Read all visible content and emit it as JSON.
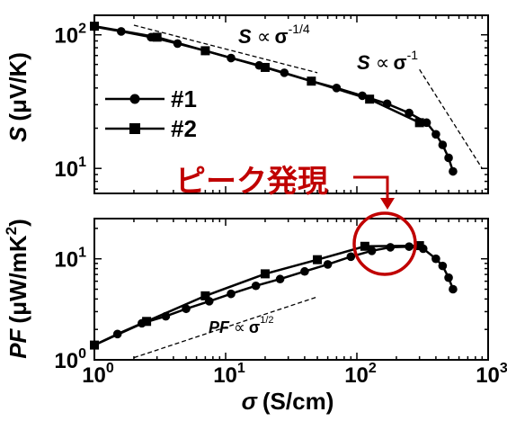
{
  "chart_data": [
    {
      "type": "line",
      "panel": "top",
      "ylabel": "S (μV/K)",
      "xscale": "log",
      "yscale": "log",
      "xlim": [
        1,
        1000
      ],
      "ylim": [
        6.5,
        140
      ],
      "legend_placement": "left",
      "series": [
        {
          "name": "#1",
          "marker": "circle",
          "x": [
            1,
            1.6,
            2.7,
            4.3,
            7,
            11,
            18,
            28,
            45,
            70,
            110,
            170,
            250,
            340,
            400,
            450,
            500,
            540
          ],
          "y": [
            115,
            106,
            96,
            86,
            76,
            67,
            59,
            52,
            45,
            40,
            35,
            30.5,
            26,
            22,
            18,
            15,
            12,
            9.5
          ]
        },
        {
          "name": "#2",
          "marker": "square",
          "x": [
            1,
            3,
            7,
            20,
            45,
            125,
            300
          ],
          "y": [
            116,
            96,
            76,
            57,
            45,
            33,
            22
          ]
        }
      ],
      "guides": [
        {
          "label_var": "S",
          "label_power": "-1/4",
          "x": [
            2,
            50
          ],
          "y": [
            118,
            52
          ]
        },
        {
          "label_var": "S",
          "label_power": "-1",
          "x": [
            300,
            900
          ],
          "y": [
            55,
            10
          ]
        }
      ]
    },
    {
      "type": "line",
      "panel": "bottom",
      "ylabel": "PF (μW/mK²)",
      "xlabel": "σ (S/cm)",
      "xscale": "log",
      "yscale": "log",
      "xlim": [
        1,
        1000
      ],
      "ylim": [
        1,
        25
      ],
      "xticks": [
        "10^0",
        "10^1",
        "10^2",
        "10^3"
      ],
      "series": [
        {
          "name": "#1",
          "marker": "circle",
          "x": [
            1,
            1.5,
            2.3,
            3.5,
            5,
            7.5,
            11,
            17,
            26,
            40,
            60,
            90,
            130,
            180,
            250,
            320,
            400,
            450,
            500,
            540
          ],
          "y": [
            1.4,
            1.8,
            2.3,
            2.7,
            3.2,
            3.8,
            4.5,
            5.4,
            6.3,
            7.5,
            8.8,
            10.5,
            12,
            13,
            13.2,
            12.6,
            10,
            8.5,
            6.5,
            5
          ]
        },
        {
          "name": "#2",
          "marker": "square",
          "x": [
            1,
            2.5,
            7,
            20,
            50,
            115,
            300
          ],
          "y": [
            1.4,
            2.4,
            4.3,
            7.1,
            9.8,
            13.3,
            13.5
          ]
        }
      ],
      "guides": [
        {
          "label_var": "PF",
          "label_power": "1/2",
          "x": [
            2,
            50
          ],
          "y": [
            1.05,
            4.2
          ]
        }
      ]
    }
  ],
  "axis_labels": {
    "top_y_var": "S",
    "top_y_unit": "(μV/K)",
    "bottom_y_var": "PF",
    "bottom_y_unit": "(μW/mK",
    "bottom_y_sup": "2",
    "bottom_y_close": ")",
    "x_var": "σ",
    "x_unit": "(S/cm)"
  },
  "propto": "∝",
  "sigma": "σ",
  "annotation": {
    "text": "ピーク発現",
    "color": "#C00000"
  },
  "colors": {
    "data": "#000000",
    "annotation": "#C00000"
  }
}
